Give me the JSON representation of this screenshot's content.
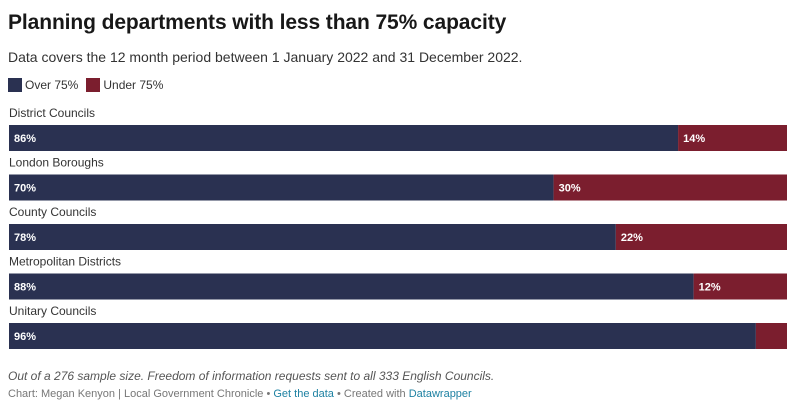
{
  "header": {
    "title": "Planning departments with less than 75% capacity",
    "subtitle": "Data covers the 12 month period between 1 January 2022 and 31 December 2022."
  },
  "legend": [
    {
      "label": "Over 75%",
      "color": "#2a3151"
    },
    {
      "label": "Under 75%",
      "color": "#7b1e2e"
    }
  ],
  "chart_data": {
    "type": "bar",
    "orientation": "horizontal",
    "stacked": true,
    "categories": [
      "District Councils",
      "London Boroughs",
      "County Councils",
      "Metropolitan Districts",
      "Unitary Councils"
    ],
    "series": [
      {
        "name": "Over 75%",
        "values": [
          86,
          70,
          78,
          88,
          96
        ],
        "labels": [
          "86%",
          "70%",
          "78%",
          "88%",
          "96%"
        ],
        "color": "#2a3151"
      },
      {
        "name": "Under 75%",
        "values": [
          14,
          30,
          22,
          12,
          4
        ],
        "labels": [
          "14%",
          "30%",
          "22%",
          "12%",
          ""
        ],
        "color": "#7b1e2e"
      }
    ],
    "xlim": [
      0,
      100
    ],
    "grid": false,
    "legend_position": "top-left"
  },
  "notes": "Out of a 276 sample size. Freedom of information requests sent to all 333 English Councils.",
  "footer": {
    "chart_by": "Chart: Megan Kenyon | Local Government Chronicle",
    "separator": "•",
    "get_data": "Get the data",
    "created_with": "Created with",
    "tool": "Datawrapper"
  }
}
